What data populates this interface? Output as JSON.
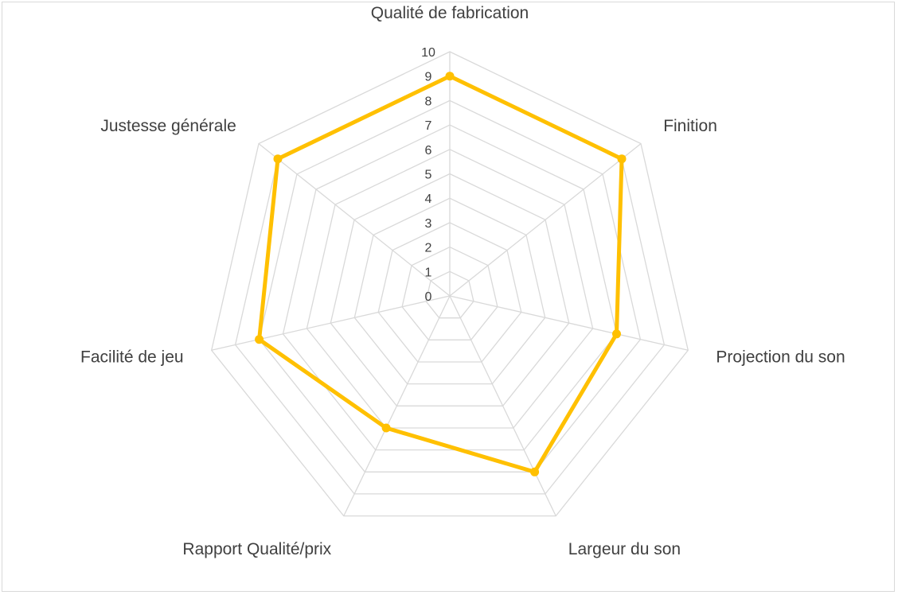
{
  "chart_data": {
    "type": "radar",
    "categories": [
      "Qualité de fabrication",
      "Finition",
      "Projection du son",
      "Largeur du son",
      "Rapport Qualité/prix",
      "Facilité de jeu",
      "Justesse générale"
    ],
    "series": [
      {
        "values": [
          9,
          9,
          7,
          8,
          6,
          8,
          9
        ],
        "color": "#FFC000"
      }
    ],
    "rlim": [
      0,
      10
    ],
    "ticks": [
      "0",
      "1",
      "2",
      "3",
      "4",
      "5",
      "6",
      "7",
      "8",
      "9",
      "10"
    ],
    "grid": true,
    "grid_color": "#d9d9d9",
    "legend": "none"
  }
}
